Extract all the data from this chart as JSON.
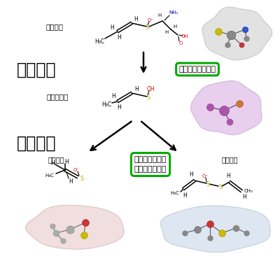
{
  "bg_color": "#ffffff",
  "label_genryo": "原料分子",
  "label_chukan": "中間体分子",
  "label_stage1": "第一段階",
  "label_stage2": "第二段階",
  "label_lachrymator": "催涙成分",
  "label_flavor": "風味成分",
  "box1_text": "ここは知ってた！",
  "box2_text": "肝心のここが分\nからなかった！",
  "box1_color": "#00aa00",
  "box2_color": "#00aa00",
  "blob_top_right_color": "#d0d0d0",
  "blob_middle_right_color": "#d8a8e0",
  "blob_bottom_left_color": "#e8c8c8",
  "blob_bottom_right_color": "#c8d8e8",
  "oh_color": "#dd0000",
  "o_color": "#dd0000",
  "nh2_color": "#0000cc",
  "s_color": "#bbaa00"
}
